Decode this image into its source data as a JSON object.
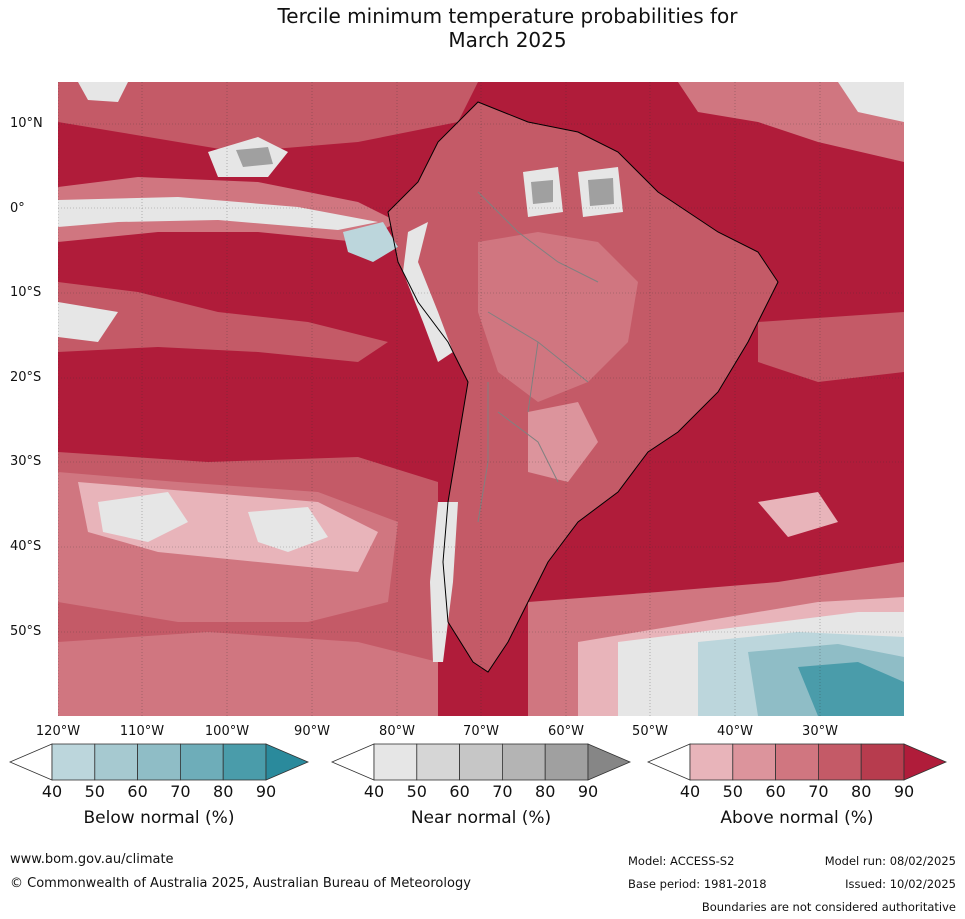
{
  "title_line1": "Tercile minimum temperature probabilities for",
  "title_line2": "March 2025",
  "lat_labels": [
    "10°N",
    "0°",
    "10°S",
    "20°S",
    "30°S",
    "40°S",
    "50°S"
  ],
  "lon_labels": [
    "120°W",
    "110°W",
    "100°W",
    "90°W",
    "80°W",
    "70°W",
    "60°W",
    "50°W",
    "40°W",
    "30°W"
  ],
  "colorbars": [
    {
      "title": "Below normal (%)",
      "ticks": [
        "40",
        "50",
        "60",
        "70",
        "80",
        "90"
      ],
      "colors": [
        "#bcd6dc",
        "#a6c9d0",
        "#8fbdc6",
        "#6eadb9",
        "#4a9caa",
        "#2a8a9c"
      ]
    },
    {
      "title": "Near normal (%)",
      "ticks": [
        "40",
        "50",
        "60",
        "70",
        "80",
        "90"
      ],
      "colors": [
        "#e6e6e6",
        "#d6d6d6",
        "#c6c6c6",
        "#b4b4b4",
        "#a0a0a0",
        "#868686"
      ]
    },
    {
      "title": "Above normal (%)",
      "ticks": [
        "40",
        "50",
        "60",
        "70",
        "80",
        "90"
      ],
      "colors": [
        "#e8b4ba",
        "#dc949c",
        "#d07680",
        "#c45a67",
        "#b73c4e",
        "#b01c3a"
      ]
    }
  ],
  "footer": {
    "website": "www.bom.gov.au/climate",
    "copyright": "© Commonwealth of Australia 2025, Australian Bureau of Meteorology",
    "model": "Model: ACCESS-S2",
    "model_run": "Model run: 08/02/2025",
    "base_period": "Base period: 1981-2018",
    "issued": "Issued: 10/02/2025",
    "boundaries": "Boundaries are not considered authoritative"
  },
  "map_colors": {
    "ocean_dominant": "#b01c3a",
    "above_mid": "#c45a67",
    "above_low": "#d07680",
    "above_pale": "#e8b4ba",
    "near_normal": "#e6e6e6",
    "near_dark": "#a0a0a0",
    "below_normal": "#4a9caa",
    "below_pale": "#bcd6dc",
    "coastline": "#000000",
    "borders": "#808080"
  }
}
